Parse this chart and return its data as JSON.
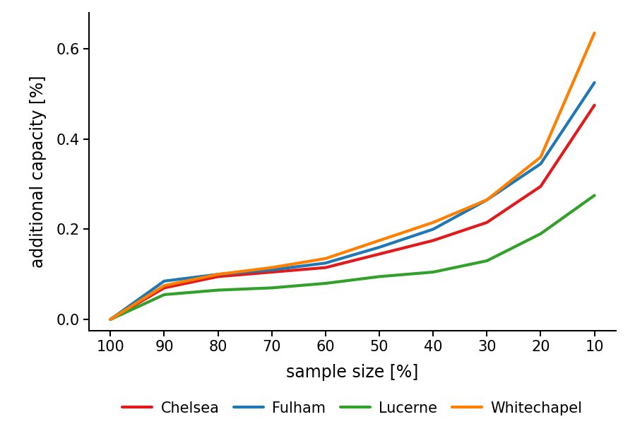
{
  "x": [
    100,
    90,
    80,
    70,
    60,
    50,
    40,
    30,
    20,
    10
  ],
  "chelsea": [
    0.0,
    0.07,
    0.095,
    0.105,
    0.115,
    0.145,
    0.175,
    0.215,
    0.295,
    0.475
  ],
  "fulham": [
    0.0,
    0.085,
    0.1,
    0.11,
    0.125,
    0.16,
    0.2,
    0.265,
    0.345,
    0.525
  ],
  "lucerne": [
    0.0,
    0.055,
    0.065,
    0.07,
    0.08,
    0.095,
    0.105,
    0.13,
    0.19,
    0.275
  ],
  "whitechapel": [
    0.0,
    0.075,
    0.1,
    0.115,
    0.135,
    0.175,
    0.215,
    0.265,
    0.36,
    0.635
  ],
  "colors": {
    "Chelsea": "#e31a1c",
    "Fulham": "#1f78b4",
    "Lucerne": "#33a02c",
    "Whitechapel": "#ff7f00"
  },
  "xlabel": "sample size [%]",
  "ylabel": "additional capacity [%]",
  "ylim": [
    -0.025,
    0.68
  ],
  "yticks": [
    0.0,
    0.2,
    0.4,
    0.6
  ],
  "ytick_labels": [
    "0.0",
    "0.2",
    "0.4",
    "0.6"
  ],
  "xticks": [
    100,
    90,
    80,
    70,
    60,
    50,
    40,
    30,
    20,
    10
  ],
  "linewidth": 3.0,
  "legend_labels": [
    "Chelsea",
    "Fulham",
    "Lucerne",
    "Whitechapel"
  ],
  "background_color": "#ffffff",
  "axis_label_fontsize": 17,
  "tick_fontsize": 15,
  "legend_fontsize": 15,
  "xlim_left": 104,
  "xlim_right": 6
}
